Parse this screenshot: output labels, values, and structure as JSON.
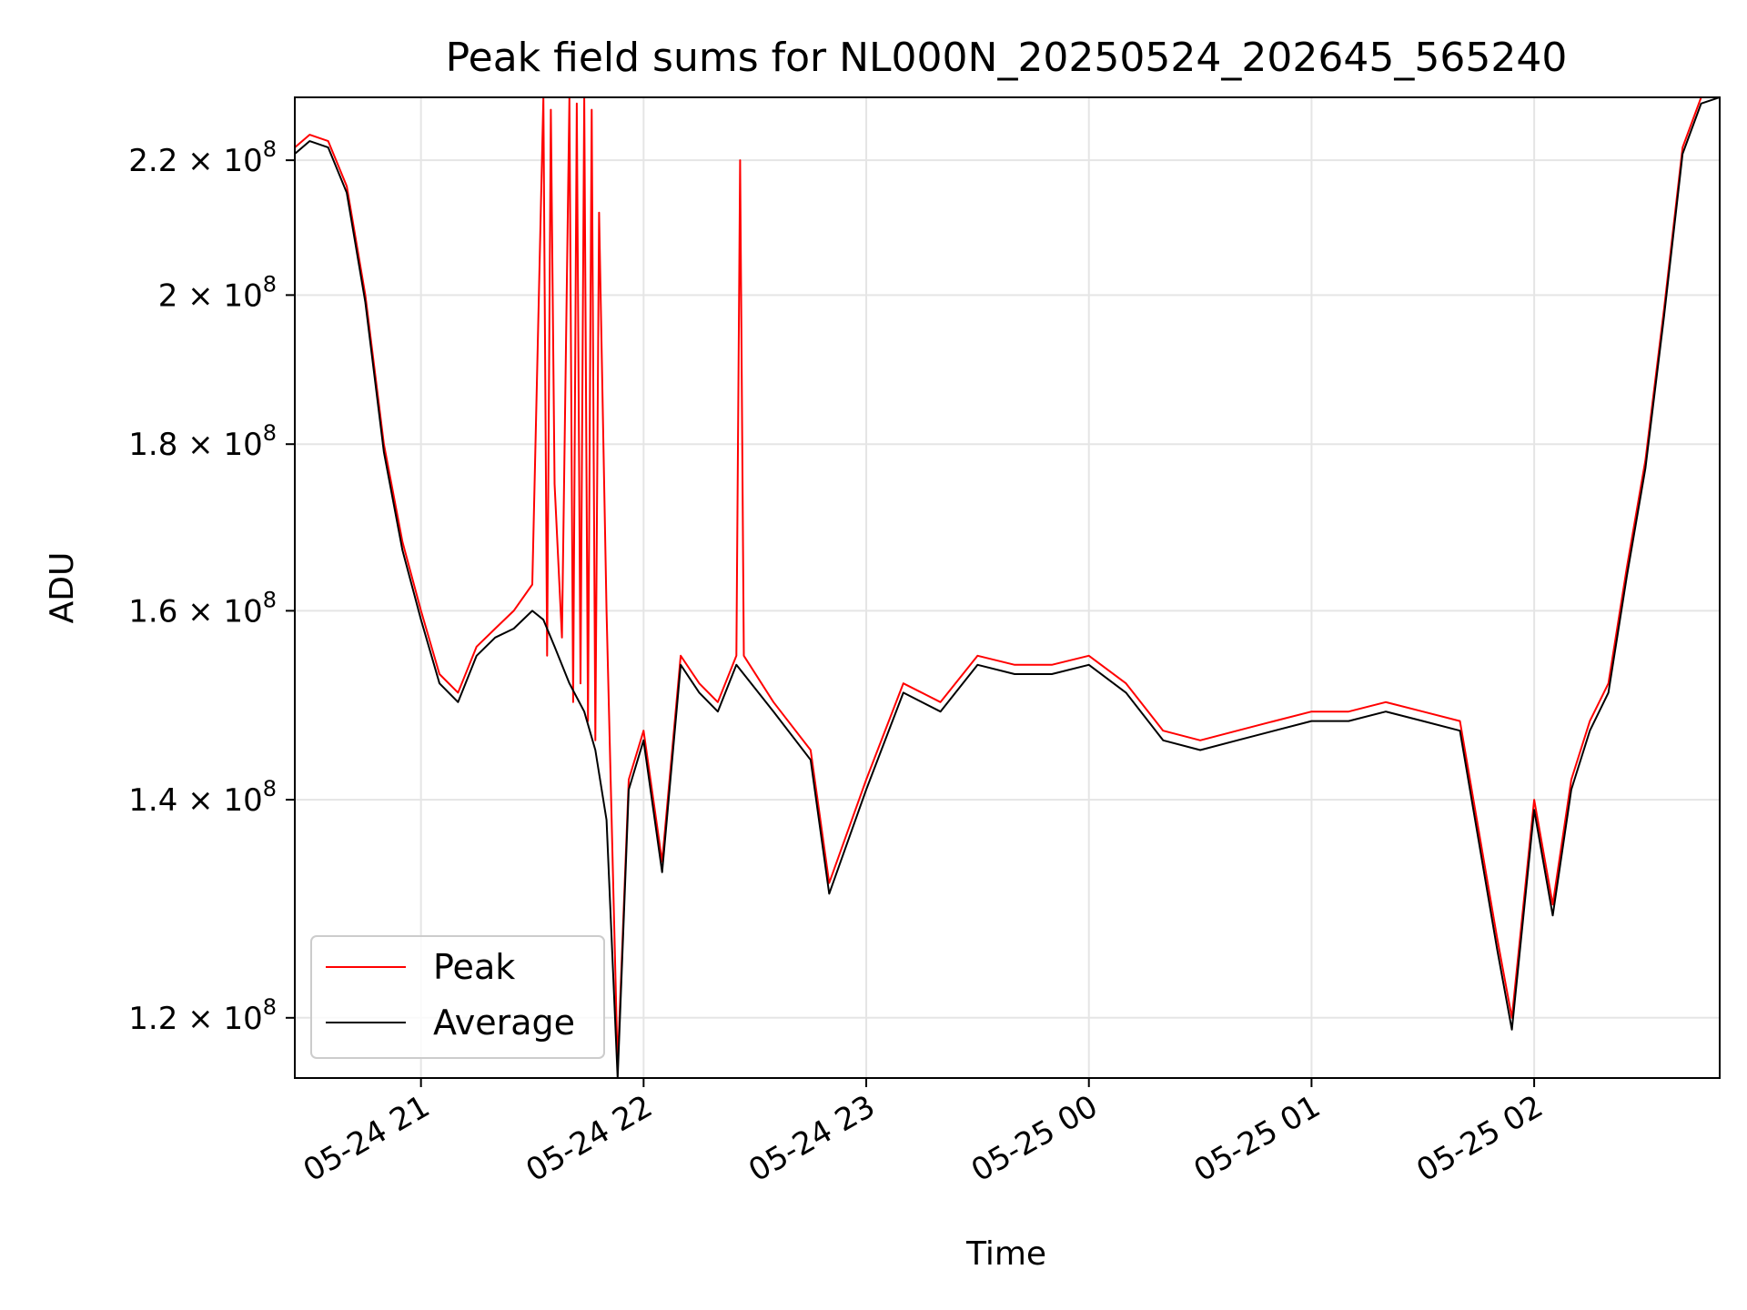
{
  "chart_data": {
    "type": "line",
    "title": "Peak field sums for NL000N_20250524_202645_565240",
    "xlabel": "Time",
    "ylabel": "ADU",
    "y_scale": "log",
    "xlim": [
      "2025-05-24 20:26",
      "2025-05-25 02:50"
    ],
    "ylim": [
      115000000,
      230000000
    ],
    "grid": true,
    "legend_position": "lower-left",
    "x_ticks": [
      {
        "value": "2025-05-24 21:00",
        "label": "05-24 21"
      },
      {
        "value": "2025-05-24 22:00",
        "label": "05-24 22"
      },
      {
        "value": "2025-05-24 23:00",
        "label": "05-24 23"
      },
      {
        "value": "2025-05-25 00:00",
        "label": "05-25 00"
      },
      {
        "value": "2025-05-25 01:00",
        "label": "05-25 01"
      },
      {
        "value": "2025-05-25 02:00",
        "label": "05-25 02"
      }
    ],
    "y_ticks": [
      {
        "value": 120000000,
        "mantissa": "1.2",
        "exp": "8"
      },
      {
        "value": 140000000,
        "mantissa": "1.4",
        "exp": "8"
      },
      {
        "value": 160000000,
        "mantissa": "1.6",
        "exp": "8"
      },
      {
        "value": 180000000,
        "mantissa": "1.8",
        "exp": "8"
      },
      {
        "value": 200000000,
        "mantissa": "2",
        "exp": "8"
      },
      {
        "value": 220000000,
        "mantissa": "2.2",
        "exp": "8"
      }
    ],
    "series": [
      {
        "name": "Peak",
        "color": "#ff0000",
        "points": [
          [
            "2025-05-24 20:26",
            222000000
          ],
          [
            "2025-05-24 20:30",
            224000000
          ],
          [
            "2025-05-24 20:35",
            223000000
          ],
          [
            "2025-05-24 20:40",
            216000000
          ],
          [
            "2025-05-24 20:45",
            200000000
          ],
          [
            "2025-05-24 20:50",
            180000000
          ],
          [
            "2025-05-24 20:55",
            168000000
          ],
          [
            "2025-05-24 21:00",
            160000000
          ],
          [
            "2025-05-24 21:05",
            153000000
          ],
          [
            "2025-05-24 21:10",
            151000000
          ],
          [
            "2025-05-24 21:15",
            156000000
          ],
          [
            "2025-05-24 21:20",
            158000000
          ],
          [
            "2025-05-24 21:25",
            160000000
          ],
          [
            "2025-05-24 21:30",
            163000000
          ],
          [
            "2025-05-24 21:33",
            230000000
          ],
          [
            "2025-05-24 21:34",
            155000000
          ],
          [
            "2025-05-24 21:35",
            228000000
          ],
          [
            "2025-05-24 21:36",
            175000000
          ],
          [
            "2025-05-24 21:38",
            157000000
          ],
          [
            "2025-05-24 21:40",
            230000000
          ],
          [
            "2025-05-24 21:41",
            150000000
          ],
          [
            "2025-05-24 21:42",
            229000000
          ],
          [
            "2025-05-24 21:43",
            152000000
          ],
          [
            "2025-05-24 21:44",
            230000000
          ],
          [
            "2025-05-24 21:45",
            148000000
          ],
          [
            "2025-05-24 21:46",
            228000000
          ],
          [
            "2025-05-24 21:47",
            146000000
          ],
          [
            "2025-05-24 21:48",
            212000000
          ],
          [
            "2025-05-24 21:50",
            160000000
          ],
          [
            "2025-05-24 21:53",
            116000000
          ],
          [
            "2025-05-24 21:56",
            142000000
          ],
          [
            "2025-05-24 22:00",
            147000000
          ],
          [
            "2025-05-24 22:05",
            134000000
          ],
          [
            "2025-05-24 22:10",
            155000000
          ],
          [
            "2025-05-24 22:15",
            152000000
          ],
          [
            "2025-05-24 22:20",
            150000000
          ],
          [
            "2025-05-24 22:25",
            155000000
          ],
          [
            "2025-05-24 22:26",
            220000000
          ],
          [
            "2025-05-24 22:27",
            155000000
          ],
          [
            "2025-05-24 22:35",
            150000000
          ],
          [
            "2025-05-24 22:45",
            145000000
          ],
          [
            "2025-05-24 22:50",
            132000000
          ],
          [
            "2025-05-24 23:00",
            142000000
          ],
          [
            "2025-05-24 23:10",
            152000000
          ],
          [
            "2025-05-24 23:20",
            150000000
          ],
          [
            "2025-05-24 23:30",
            155000000
          ],
          [
            "2025-05-24 23:40",
            154000000
          ],
          [
            "2025-05-24 23:50",
            154000000
          ],
          [
            "2025-05-25 00:00",
            155000000
          ],
          [
            "2025-05-25 00:10",
            152000000
          ],
          [
            "2025-05-25 00:20",
            147000000
          ],
          [
            "2025-05-25 00:30",
            146000000
          ],
          [
            "2025-05-25 00:40",
            147000000
          ],
          [
            "2025-05-25 00:50",
            148000000
          ],
          [
            "2025-05-25 01:00",
            149000000
          ],
          [
            "2025-05-25 01:10",
            149000000
          ],
          [
            "2025-05-25 01:20",
            150000000
          ],
          [
            "2025-05-25 01:30",
            149000000
          ],
          [
            "2025-05-25 01:40",
            148000000
          ],
          [
            "2025-05-25 01:50",
            127000000
          ],
          [
            "2025-05-25 01:54",
            120000000
          ],
          [
            "2025-05-25 02:00",
            140000000
          ],
          [
            "2025-05-25 02:05",
            130000000
          ],
          [
            "2025-05-25 02:10",
            142000000
          ],
          [
            "2025-05-25 02:15",
            148000000
          ],
          [
            "2025-05-25 02:20",
            152000000
          ],
          [
            "2025-05-25 02:25",
            165000000
          ],
          [
            "2025-05-25 02:30",
            178000000
          ],
          [
            "2025-05-25 02:35",
            198000000
          ],
          [
            "2025-05-25 02:40",
            222000000
          ],
          [
            "2025-05-25 02:45",
            230000000
          ],
          [
            "2025-05-25 02:50",
            230000000
          ]
        ]
      },
      {
        "name": "Average",
        "color": "#000000",
        "points": [
          [
            "2025-05-24 20:26",
            221000000
          ],
          [
            "2025-05-24 20:30",
            223000000
          ],
          [
            "2025-05-24 20:35",
            222000000
          ],
          [
            "2025-05-24 20:40",
            215000000
          ],
          [
            "2025-05-24 20:45",
            199000000
          ],
          [
            "2025-05-24 20:50",
            179000000
          ],
          [
            "2025-05-24 20:55",
            167000000
          ],
          [
            "2025-05-24 21:00",
            159000000
          ],
          [
            "2025-05-24 21:05",
            152000000
          ],
          [
            "2025-05-24 21:10",
            150000000
          ],
          [
            "2025-05-24 21:15",
            155000000
          ],
          [
            "2025-05-24 21:20",
            157000000
          ],
          [
            "2025-05-24 21:25",
            158000000
          ],
          [
            "2025-05-24 21:30",
            160000000
          ],
          [
            "2025-05-24 21:33",
            159000000
          ],
          [
            "2025-05-24 21:36",
            156000000
          ],
          [
            "2025-05-24 21:40",
            152000000
          ],
          [
            "2025-05-24 21:44",
            149000000
          ],
          [
            "2025-05-24 21:47",
            145000000
          ],
          [
            "2025-05-24 21:50",
            138000000
          ],
          [
            "2025-05-24 21:53",
            115000000
          ],
          [
            "2025-05-24 21:56",
            141000000
          ],
          [
            "2025-05-24 22:00",
            146000000
          ],
          [
            "2025-05-24 22:05",
            133000000
          ],
          [
            "2025-05-24 22:10",
            154000000
          ],
          [
            "2025-05-24 22:15",
            151000000
          ],
          [
            "2025-05-24 22:20",
            149000000
          ],
          [
            "2025-05-24 22:25",
            154000000
          ],
          [
            "2025-05-24 22:35",
            149000000
          ],
          [
            "2025-05-24 22:45",
            144000000
          ],
          [
            "2025-05-24 22:50",
            131000000
          ],
          [
            "2025-05-24 23:00",
            141000000
          ],
          [
            "2025-05-24 23:10",
            151000000
          ],
          [
            "2025-05-24 23:20",
            149000000
          ],
          [
            "2025-05-24 23:30",
            154000000
          ],
          [
            "2025-05-24 23:40",
            153000000
          ],
          [
            "2025-05-24 23:50",
            153000000
          ],
          [
            "2025-05-25 00:00",
            154000000
          ],
          [
            "2025-05-25 00:10",
            151000000
          ],
          [
            "2025-05-25 00:20",
            146000000
          ],
          [
            "2025-05-25 00:30",
            145000000
          ],
          [
            "2025-05-25 00:40",
            146000000
          ],
          [
            "2025-05-25 00:50",
            147000000
          ],
          [
            "2025-05-25 01:00",
            148000000
          ],
          [
            "2025-05-25 01:10",
            148000000
          ],
          [
            "2025-05-25 01:20",
            149000000
          ],
          [
            "2025-05-25 01:30",
            148000000
          ],
          [
            "2025-05-25 01:40",
            147000000
          ],
          [
            "2025-05-25 01:50",
            126000000
          ],
          [
            "2025-05-25 01:54",
            119000000
          ],
          [
            "2025-05-25 02:00",
            139000000
          ],
          [
            "2025-05-25 02:05",
            129000000
          ],
          [
            "2025-05-25 02:10",
            141000000
          ],
          [
            "2025-05-25 02:15",
            147000000
          ],
          [
            "2025-05-25 02:20",
            151000000
          ],
          [
            "2025-05-25 02:25",
            164000000
          ],
          [
            "2025-05-25 02:30",
            177000000
          ],
          [
            "2025-05-25 02:35",
            197000000
          ],
          [
            "2025-05-25 02:40",
            221000000
          ],
          [
            "2025-05-25 02:45",
            229000000
          ],
          [
            "2025-05-25 02:50",
            230000000
          ]
        ]
      }
    ]
  }
}
